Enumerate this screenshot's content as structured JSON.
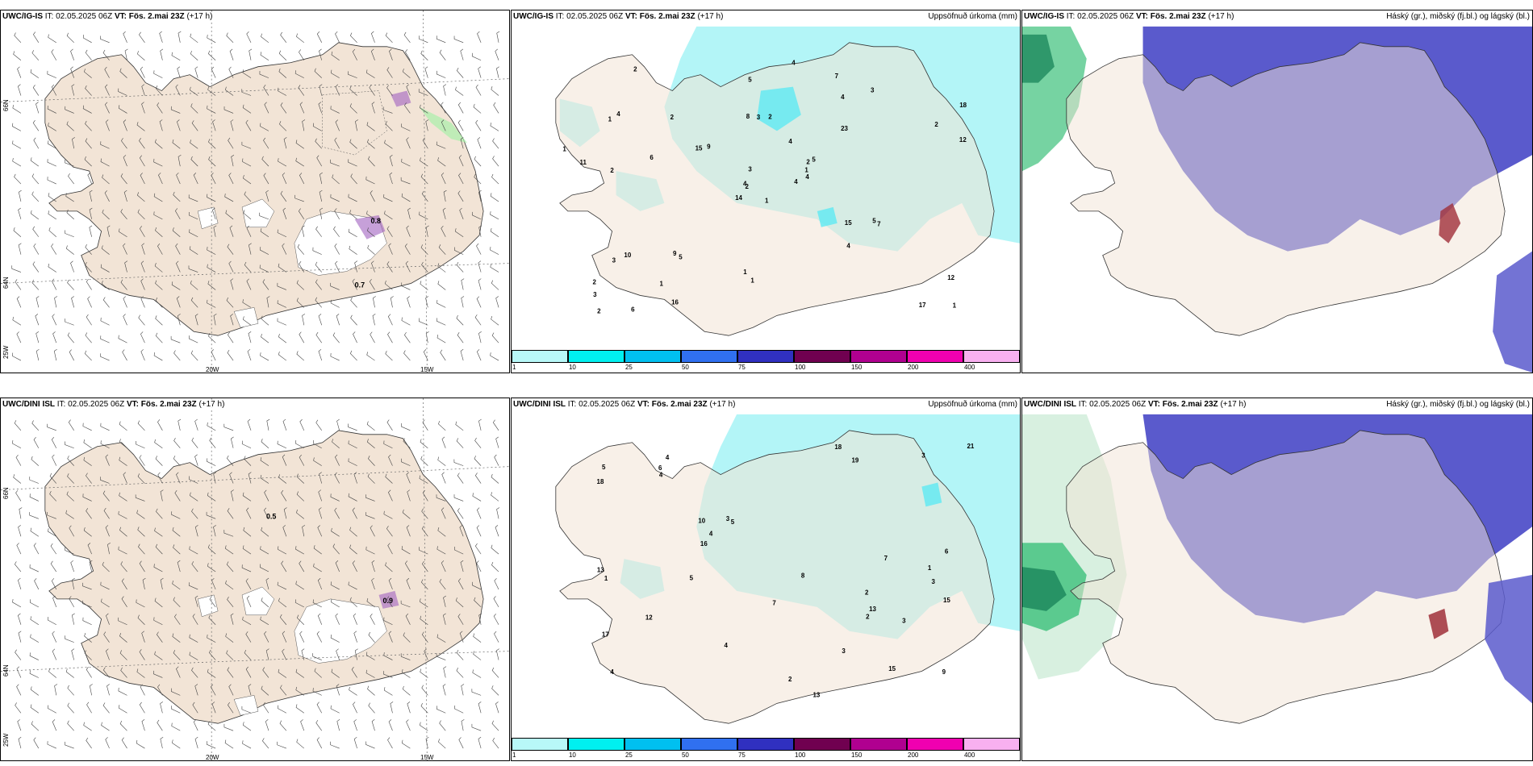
{
  "rows": [
    {
      "model": "UWC/IG-IS",
      "it_label": "IT:",
      "it_value": "02.05.2025 06Z",
      "vt_label": "VT:",
      "vt_value": "Fös. 2.mai 23Z",
      "lead": "(+17 h)"
    },
    {
      "model": "UWC/DINI ISL",
      "it_label": "IT:",
      "it_value": "02.05.2025 06Z",
      "vt_label": "VT:",
      "vt_value": "Fös. 2.mai 23Z",
      "lead": "(+17 h)"
    }
  ],
  "precip_title": "Uppsöfnuð úrkoma (mm)",
  "cloud_title": "Háský (gr.), miðský (fj.bl.) og lágský (bl.)",
  "grid_labels": {
    "lat_66": "66N",
    "lat_64": "64N",
    "lon_25": "25W",
    "lon_20": "20W",
    "lon_15": "15W"
  },
  "colorbar": {
    "ticks": [
      "1",
      "10",
      "25",
      "50",
      "75",
      "100",
      "150",
      "200",
      "400"
    ],
    "colors": [
      "#b8f8f8",
      "#00f0f0",
      "#00c0f0",
      "#3070f0",
      "#3030c0",
      "#700050",
      "#b00090",
      "#f000b0",
      "#f8b0f0"
    ]
  },
  "colors": {
    "land": "#f2e4d6",
    "precip_light": "#b3f5f7",
    "precip_mid": "#5eeaf2",
    "high_cloud": "#5a5acc",
    "low_cloud_green": "#3cc07a"
  },
  "precip_values": {
    "top": [
      "1",
      "1",
      "2",
      "2",
      "2",
      "5",
      "7",
      "2",
      "4",
      "4",
      "2",
      "1",
      "2",
      "18",
      "14",
      "23",
      "6",
      "8",
      "4",
      "10",
      "9",
      "3",
      "1",
      "3",
      "5",
      "7",
      "4",
      "5",
      "11",
      "15",
      "12",
      "4",
      "1",
      "3",
      "2",
      "3",
      "9",
      "17",
      "12",
      "5",
      "4",
      "15",
      "6",
      "4",
      "16",
      "1",
      "1",
      "2",
      "1",
      "4",
      "3",
      "2"
    ],
    "bottom": [
      "2",
      "3",
      "4",
      "4",
      "5",
      "15",
      "17",
      "19",
      "10",
      "13",
      "18",
      "13",
      "5",
      "9",
      "4",
      "6",
      "7",
      "8",
      "3",
      "12",
      "21",
      "3",
      "16",
      "15",
      "18",
      "6",
      "13",
      "1",
      "4",
      "7",
      "2",
      "3",
      "4",
      "5",
      "1",
      "3",
      "2"
    ]
  },
  "wind_labels": {
    "top": [
      "0.7",
      "0.8"
    ],
    "bottom": [
      "0.5",
      "0.9"
    ]
  }
}
